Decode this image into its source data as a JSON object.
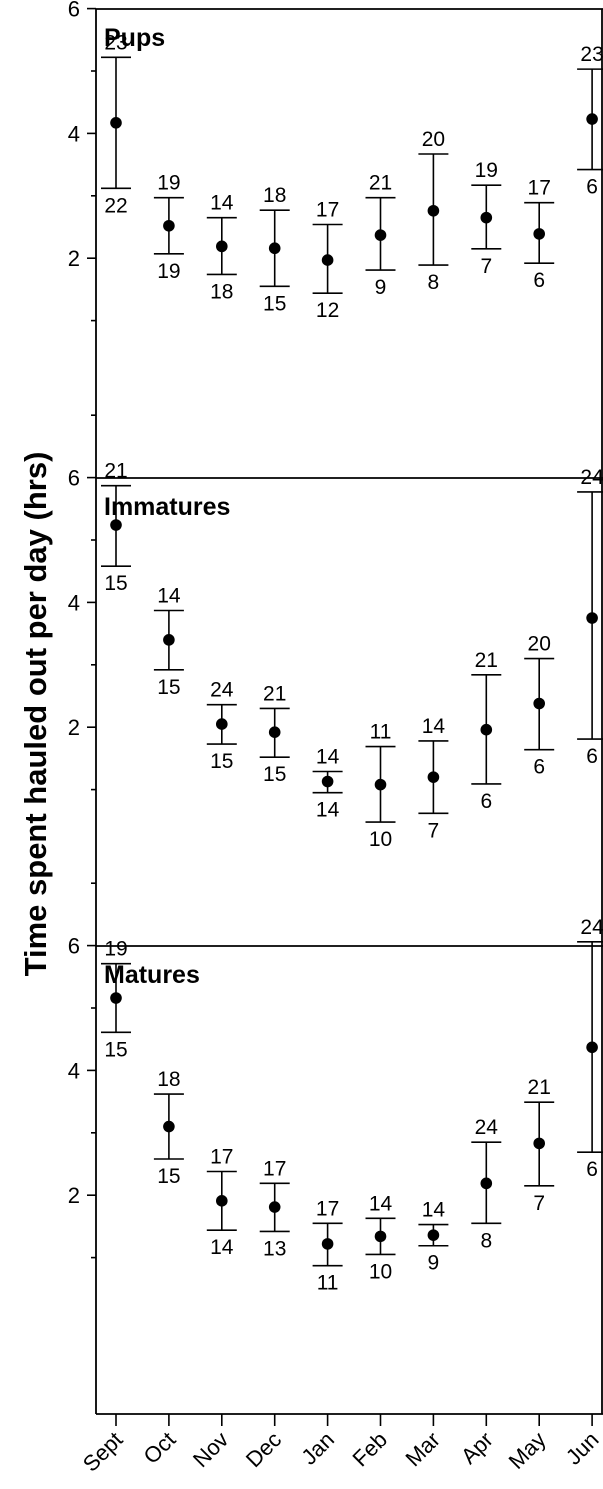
{
  "chart_data": {
    "type": "scatter",
    "ylabel": "Time spent hauled out per day (hrs)",
    "months": [
      "Sept",
      "Oct",
      "Nov",
      "Dec",
      "Jan",
      "Feb",
      "Mar",
      "Apr",
      "May",
      "Jun"
    ],
    "ylim": [
      0,
      7.6
    ],
    "yticks": [
      2,
      4,
      6
    ],
    "minor_yticks": [
      1,
      3,
      5,
      7
    ],
    "panels": [
      {
        "title": "Pups",
        "series": [
          {
            "month": "Sept",
            "mean": 4.17,
            "upper": 5.22,
            "lower": 3.12,
            "n_top": "23",
            "n_bottom": "22"
          },
          {
            "month": "Oct",
            "mean": 2.52,
            "upper": 2.97,
            "lower": 2.07,
            "n_top": "19",
            "n_bottom": "19"
          },
          {
            "month": "Nov",
            "mean": 2.19,
            "upper": 2.65,
            "lower": 1.74,
            "n_top": "14",
            "n_bottom": "18"
          },
          {
            "month": "Dec",
            "mean": 2.16,
            "upper": 2.77,
            "lower": 1.55,
            "n_top": "18",
            "n_bottom": "15"
          },
          {
            "month": "Jan",
            "mean": 1.97,
            "upper": 2.54,
            "lower": 1.44,
            "n_top": "17",
            "n_bottom": "12"
          },
          {
            "month": "Feb",
            "mean": 2.37,
            "upper": 2.97,
            "lower": 1.81,
            "n_top": "21",
            "n_bottom": "9"
          },
          {
            "month": "Mar",
            "mean": 2.76,
            "upper": 3.67,
            "lower": 1.89,
            "n_top": "20",
            "n_bottom": "8"
          },
          {
            "month": "Apr",
            "mean": 2.65,
            "upper": 3.17,
            "lower": 2.15,
            "n_top": "19",
            "n_bottom": "7"
          },
          {
            "month": "May",
            "mean": 2.39,
            "upper": 2.89,
            "lower": 1.92,
            "n_top": "17",
            "n_bottom": "6"
          },
          {
            "month": "Jun",
            "mean": 4.23,
            "upper": 5.03,
            "lower": 3.42,
            "n_top": "23",
            "n_bottom": "6"
          }
        ]
      },
      {
        "title": "Immatures",
        "series": [
          {
            "month": "Sept",
            "mean": 5.24,
            "upper": 5.87,
            "lower": 4.58,
            "n_top": "21",
            "n_bottom": "15"
          },
          {
            "month": "Oct",
            "mean": 3.4,
            "upper": 3.87,
            "lower": 2.92,
            "n_top": "14",
            "n_bottom": "15"
          },
          {
            "month": "Nov",
            "mean": 2.05,
            "upper": 2.36,
            "lower": 1.73,
            "n_top": "24",
            "n_bottom": "15"
          },
          {
            "month": "Dec",
            "mean": 1.92,
            "upper": 2.3,
            "lower": 1.52,
            "n_top": "21",
            "n_bottom": "15"
          },
          {
            "month": "Jan",
            "mean": 1.13,
            "upper": 1.29,
            "lower": 0.95,
            "n_top": "14",
            "n_bottom": "14"
          },
          {
            "month": "Feb",
            "mean": 1.08,
            "upper": 1.69,
            "lower": 0.48,
            "n_top": "11",
            "n_bottom": "10"
          },
          {
            "month": "Mar",
            "mean": 1.2,
            "upper": 1.78,
            "lower": 0.62,
            "n_top": "14",
            "n_bottom": "7"
          },
          {
            "month": "Apr",
            "mean": 1.96,
            "upper": 2.84,
            "lower": 1.09,
            "n_top": "21",
            "n_bottom": "6"
          },
          {
            "month": "May",
            "mean": 2.38,
            "upper": 3.1,
            "lower": 1.64,
            "n_top": "20",
            "n_bottom": "6"
          },
          {
            "month": "Jun",
            "mean": 3.75,
            "upper": 5.77,
            "lower": 1.81,
            "n_top": "24",
            "n_bottom": "6"
          }
        ]
      },
      {
        "title": "Matures",
        "series": [
          {
            "month": "Sept",
            "mean": 5.16,
            "upper": 5.71,
            "lower": 4.61,
            "n_top": "19",
            "n_bottom": "15"
          },
          {
            "month": "Oct",
            "mean": 3.1,
            "upper": 3.62,
            "lower": 2.58,
            "n_top": "18",
            "n_bottom": "15"
          },
          {
            "month": "Nov",
            "mean": 1.91,
            "upper": 2.38,
            "lower": 1.44,
            "n_top": "17",
            "n_bottom": "14"
          },
          {
            "month": "Dec",
            "mean": 1.81,
            "upper": 2.19,
            "lower": 1.42,
            "n_top": "17",
            "n_bottom": "13"
          },
          {
            "month": "Jan",
            "mean": 1.22,
            "upper": 1.55,
            "lower": 0.87,
            "n_top": "17",
            "n_bottom": "11"
          },
          {
            "month": "Feb",
            "mean": 1.34,
            "upper": 1.63,
            "lower": 1.05,
            "n_top": "14",
            "n_bottom": "10"
          },
          {
            "month": "Mar",
            "mean": 1.36,
            "upper": 1.53,
            "lower": 1.19,
            "n_top": "14",
            "n_bottom": "9"
          },
          {
            "month": "Apr",
            "mean": 2.19,
            "upper": 2.85,
            "lower": 1.55,
            "n_top": "24",
            "n_bottom": "8"
          },
          {
            "month": "May",
            "mean": 2.83,
            "upper": 3.49,
            "lower": 2.15,
            "n_top": "21",
            "n_bottom": "7"
          },
          {
            "month": "Jun",
            "mean": 4.37,
            "upper": 6.06,
            "lower": 2.69,
            "n_top": "24",
            "n_bottom": "6"
          }
        ]
      }
    ]
  }
}
